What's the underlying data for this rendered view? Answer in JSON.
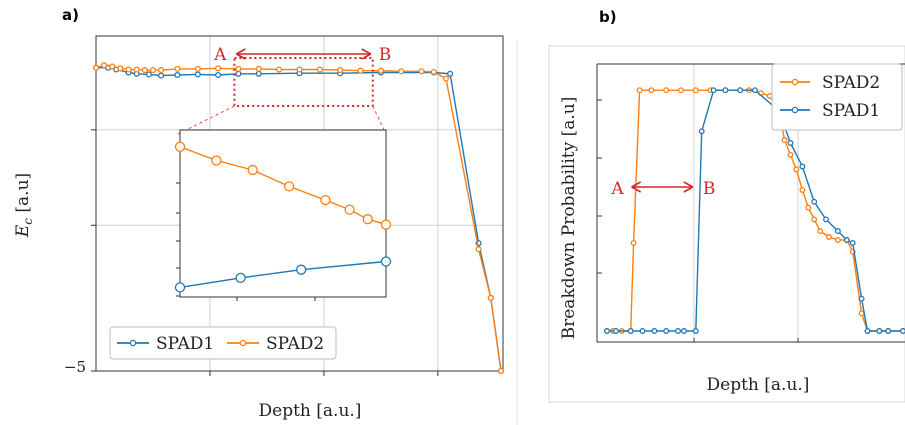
{
  "panels": {
    "a": "a)",
    "b": "b)"
  },
  "colors": {
    "spad1": "#1f77b4",
    "spad2": "#ff7f0e",
    "annot": "#d62728",
    "grid": "#cfcfcf",
    "axis": "#333333"
  },
  "chart_data": [
    {
      "id": "a",
      "type": "line",
      "xlabel": "Depth [a.u.]",
      "ylabel": "E_c [a.u]",
      "y_tick_labels": [
        "−5"
      ],
      "ylim": [
        -5,
        0.5
      ],
      "xlim": [
        0,
        1
      ],
      "grid": true,
      "legend_position": "bottom-left",
      "annotation": {
        "start_label": "A",
        "end_label": "B",
        "x_start": 0.34,
        "x_end": 0.68
      },
      "series": [
        {
          "name": "SPAD1",
          "x": [
            0.0,
            0.03,
            0.05,
            0.08,
            0.1,
            0.13,
            0.16,
            0.2,
            0.25,
            0.3,
            0.35,
            0.4,
            0.5,
            0.6,
            0.7,
            0.83,
            0.87,
            0.94,
            0.97,
            0.995
          ],
          "y": [
            -0.02,
            -0.02,
            -0.05,
            -0.1,
            -0.12,
            -0.13,
            -0.15,
            -0.14,
            -0.13,
            -0.14,
            -0.12,
            -0.12,
            -0.11,
            -0.11,
            -0.1,
            -0.1,
            -0.12,
            -2.9,
            -3.8,
            -5.0
          ]
        },
        {
          "name": "SPAD2",
          "x": [
            0.0,
            0.02,
            0.04,
            0.06,
            0.08,
            0.1,
            0.12,
            0.14,
            0.16,
            0.2,
            0.25,
            0.3,
            0.35,
            0.4,
            0.45,
            0.5,
            0.55,
            0.6,
            0.65,
            0.7,
            0.75,
            0.8,
            0.83,
            0.86,
            0.94,
            0.97,
            0.995
          ],
          "y": [
            -0.02,
            0.02,
            0.0,
            -0.03,
            -0.05,
            -0.05,
            -0.06,
            -0.06,
            -0.06,
            -0.04,
            -0.04,
            -0.03,
            -0.04,
            -0.04,
            -0.05,
            -0.05,
            -0.05,
            -0.06,
            -0.07,
            -0.07,
            -0.08,
            -0.08,
            -0.09,
            -0.2,
            -3.0,
            -3.8,
            -5.0
          ]
        }
      ],
      "inset": {
        "x": [
          0.34,
          0.68
        ],
        "series": [
          {
            "name": "SPAD1",
            "x": [
              0.34,
              0.44,
              0.54,
              0.68
            ],
            "y": [
              -0.128,
              -0.121,
              -0.115,
              -0.109
            ]
          },
          {
            "name": "SPAD2",
            "x": [
              0.34,
              0.4,
              0.46,
              0.52,
              0.58,
              0.62,
              0.65,
              0.68
            ],
            "y": [
              -0.025,
              -0.035,
              -0.042,
              -0.054,
              -0.064,
              -0.071,
              -0.078,
              -0.082
            ]
          }
        ]
      }
    },
    {
      "id": "b",
      "type": "line",
      "xlabel": "Depth [a.u.]",
      "ylabel": "Breakdown Probability [a.u]",
      "ylim": [
        0,
        1.0
      ],
      "xlim": [
        0,
        1
      ],
      "grid": true,
      "legend_position": "top-right",
      "annotation": {
        "start_label": "A",
        "end_label": "B",
        "x_start": 0.09,
        "x_end": 0.29
      },
      "series": [
        {
          "name": "SPAD2",
          "x": [
            0.0,
            0.02,
            0.05,
            0.08,
            0.09,
            0.11,
            0.15,
            0.2,
            0.25,
            0.3,
            0.35,
            0.4,
            0.45,
            0.48,
            0.52,
            0.55,
            0.58,
            0.6,
            0.62,
            0.64,
            0.66,
            0.68,
            0.7,
            0.72,
            0.75,
            0.78,
            0.81,
            0.83,
            0.86,
            0.88,
            0.92,
            0.95,
            1.0
          ],
          "y": [
            0.0,
            0.0,
            0.0,
            0.0,
            0.3,
            0.82,
            0.82,
            0.82,
            0.82,
            0.82,
            0.82,
            0.82,
            0.82,
            0.82,
            0.81,
            0.8,
            0.75,
            0.65,
            0.6,
            0.55,
            0.48,
            0.42,
            0.38,
            0.34,
            0.32,
            0.31,
            0.31,
            0.27,
            0.06,
            0.0,
            0.0,
            0.0,
            0.0
          ]
        },
        {
          "name": "SPAD1",
          "x": [
            0.0,
            0.03,
            0.08,
            0.12,
            0.16,
            0.2,
            0.24,
            0.26,
            0.3,
            0.32,
            0.36,
            0.4,
            0.45,
            0.5,
            0.58,
            0.62,
            0.66,
            0.7,
            0.74,
            0.78,
            0.81,
            0.83,
            0.86,
            0.88,
            0.92,
            0.95,
            1.0
          ],
          "y": [
            0.0,
            0.0,
            0.0,
            0.0,
            0.0,
            0.0,
            0.0,
            0.0,
            0.0,
            0.68,
            0.82,
            0.82,
            0.82,
            0.82,
            0.75,
            0.64,
            0.56,
            0.44,
            0.38,
            0.34,
            0.31,
            0.3,
            0.11,
            0.0,
            0.0,
            0.0,
            0.0
          ]
        }
      ]
    }
  ]
}
